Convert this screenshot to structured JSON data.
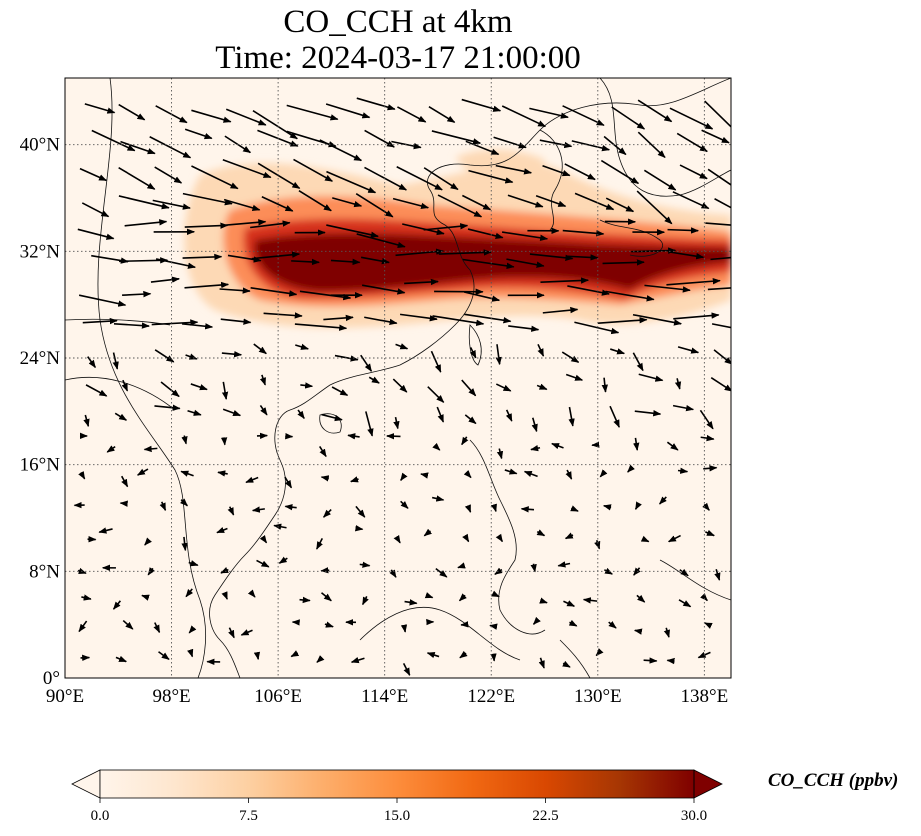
{
  "map": {
    "title_line1": "CO_CCH at 4km",
    "title_line2": "Time: 2024-03-17 21:00:00",
    "extent": {
      "lon_min": 90,
      "lon_max": 140,
      "lat_min": 0,
      "lat_max": 45
    },
    "lon_ticks": [
      {
        "value": 90,
        "label": "90°E"
      },
      {
        "value": 98,
        "label": "98°E"
      },
      {
        "value": 106,
        "label": "106°E"
      },
      {
        "value": 114,
        "label": "114°E"
      },
      {
        "value": 122,
        "label": "122°E"
      },
      {
        "value": 130,
        "label": "130°E"
      },
      {
        "value": 138,
        "label": "138°E"
      }
    ],
    "lat_ticks": [
      {
        "value": 0,
        "label": "0°"
      },
      {
        "value": 8,
        "label": "8°N"
      },
      {
        "value": 16,
        "label": "16°N"
      },
      {
        "value": 24,
        "label": "24°N"
      },
      {
        "value": 32,
        "label": "32°N"
      },
      {
        "value": 40,
        "label": "40°N"
      }
    ],
    "gridlines": true,
    "background_color": "#fff5eb",
    "plume_colors": [
      "#fdd9b5",
      "#fc8d59",
      "#d7301f",
      "#7f0000"
    ]
  },
  "colorbar": {
    "title": "CO_CCH (ppbv)",
    "range": [
      0,
      30
    ],
    "extend": "both",
    "ticks": [
      {
        "value": 0,
        "label": "0.0"
      },
      {
        "value": 7.5,
        "label": "7.5"
      },
      {
        "value": 15,
        "label": "15.0"
      },
      {
        "value": 22.5,
        "label": "22.5"
      },
      {
        "value": 30,
        "label": "30.0"
      }
    ],
    "colors": [
      "#fff5eb",
      "#fee6ce",
      "#fdd0a2",
      "#fdae6b",
      "#fd8d3c",
      "#f16913",
      "#d94801",
      "#a63603",
      "#7f0000"
    ]
  }
}
